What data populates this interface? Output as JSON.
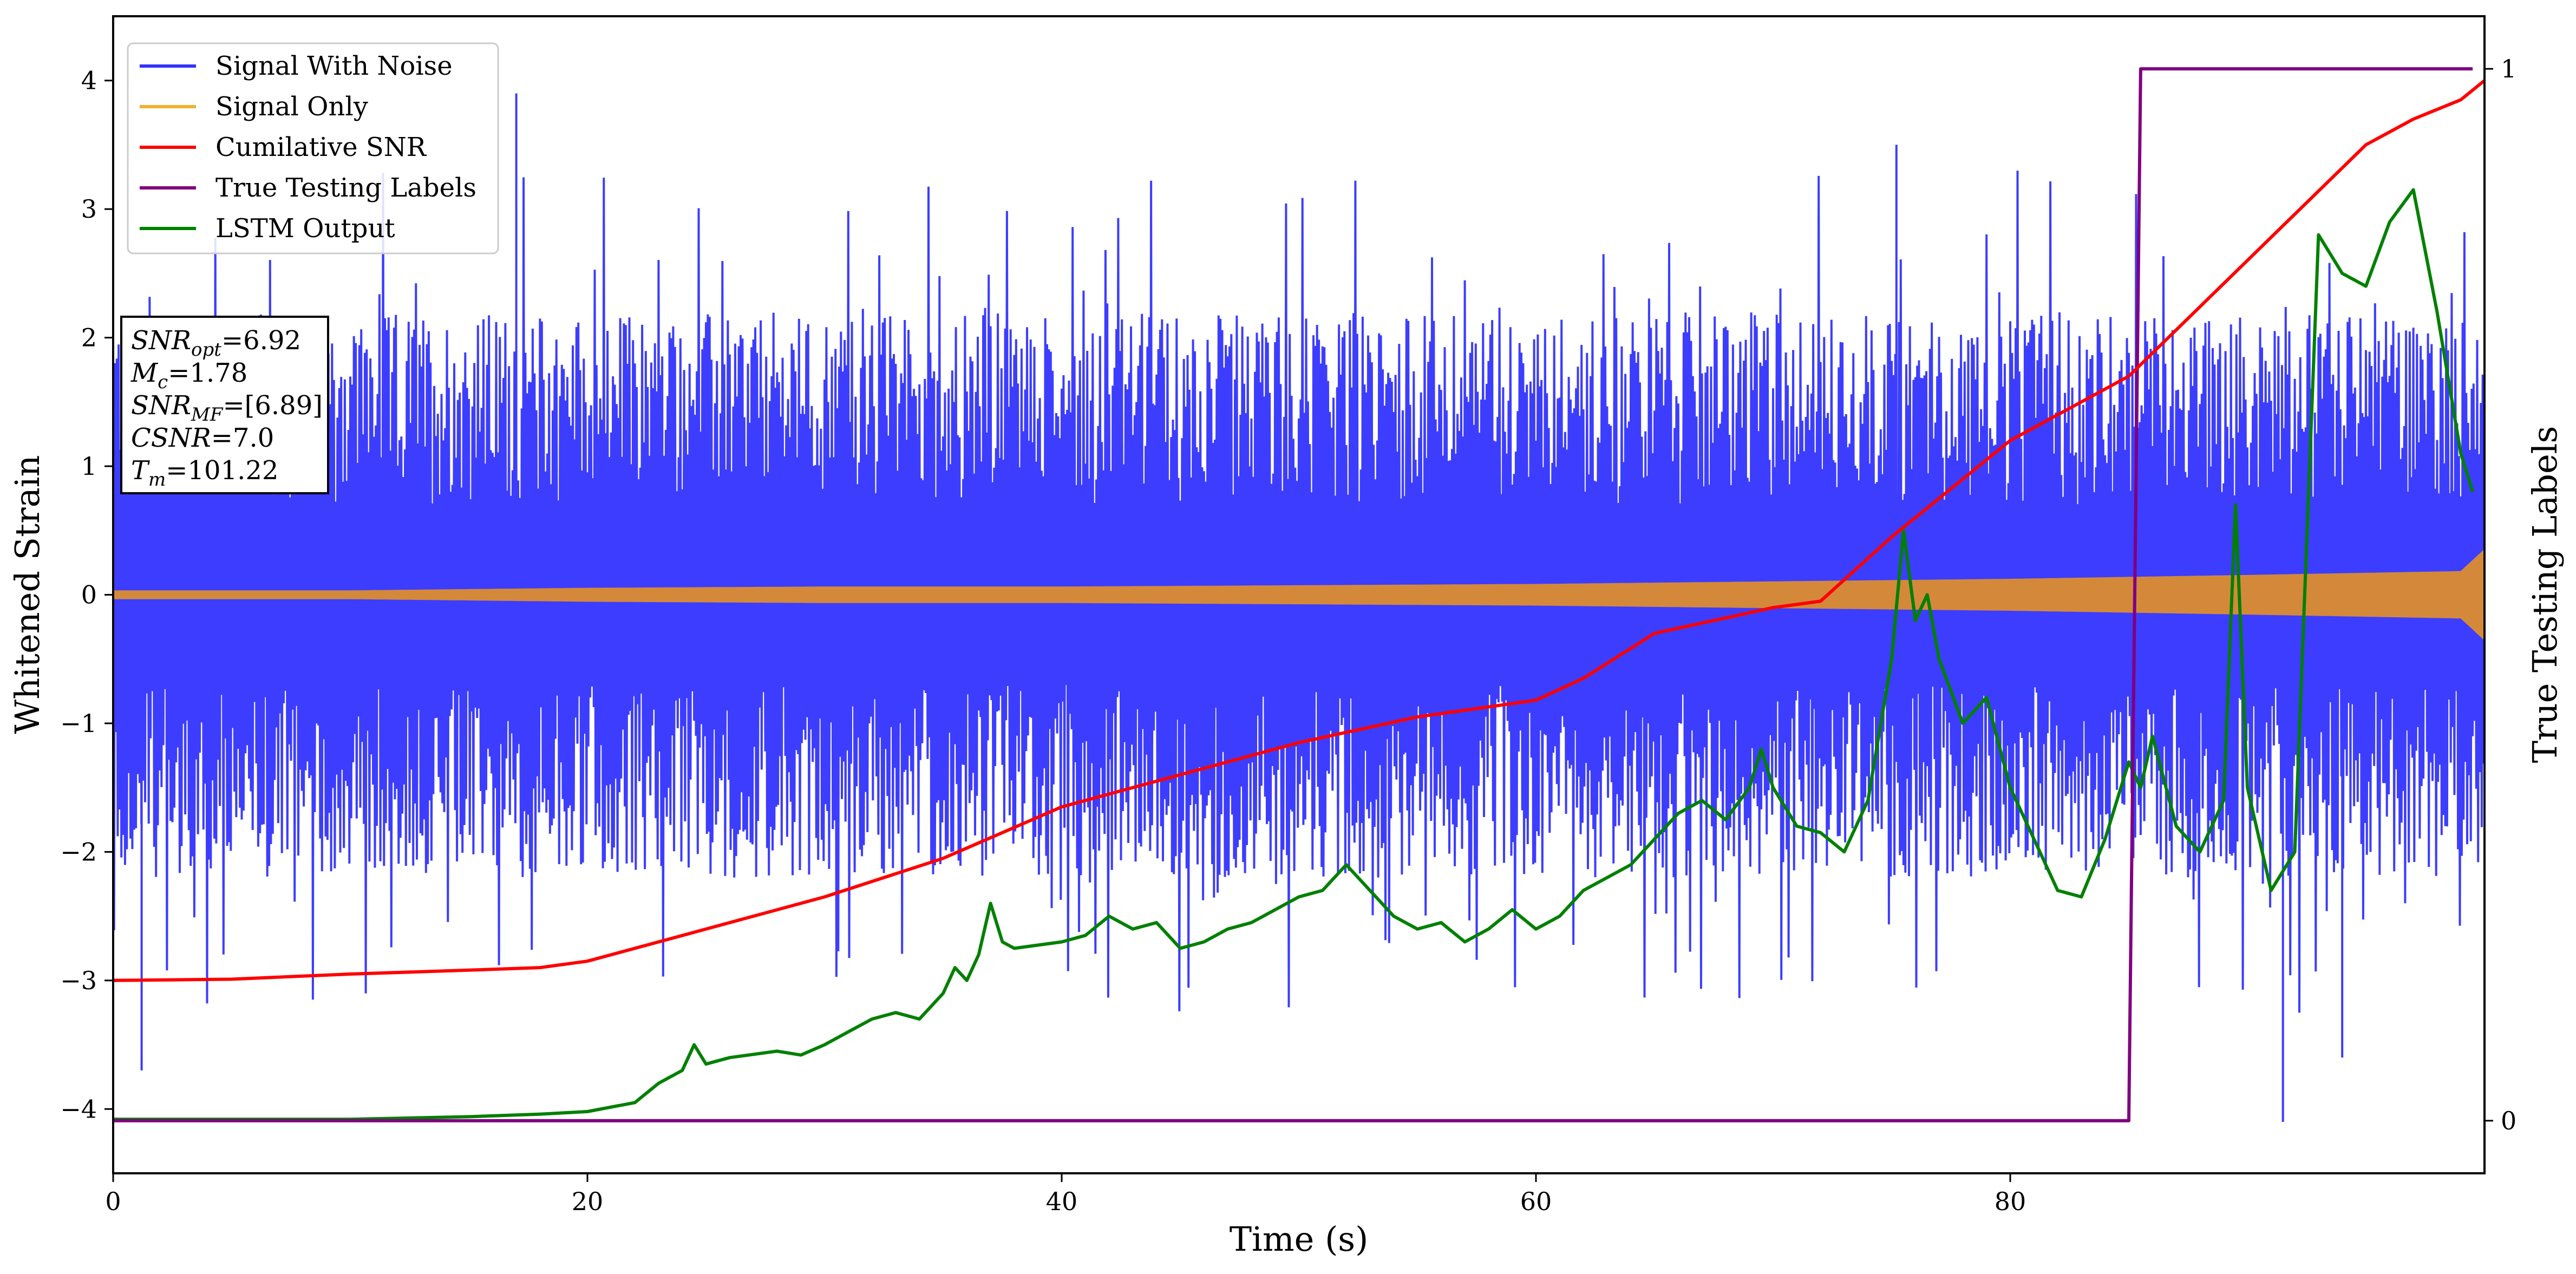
{
  "chart_data": {
    "type": "line",
    "xlabel": "Time (s)",
    "ylabel": "Whitened Strain",
    "y2label": "True Testing Labels",
    "xlim": [
      0,
      100
    ],
    "ylim": [
      -4.5,
      4.5
    ],
    "y2lim": [
      -0.05,
      1.05
    ],
    "xticks": [
      0,
      20,
      40,
      60,
      80
    ],
    "yticks": [
      -4,
      -3,
      -2,
      -1,
      0,
      1,
      2,
      3,
      4
    ],
    "y2ticks": [
      0,
      1
    ],
    "legend_position": "top-left",
    "colors": {
      "noise": "#3333ff",
      "signal": "#d4893a",
      "csnr": "#ff0000",
      "labels": "#800080",
      "lstm": "#008000"
    },
    "series": [
      {
        "key": "noise",
        "name": "Signal With Noise",
        "axis": "left",
        "legend_color": "#3333ff",
        "envelope": {
          "x": [
            0,
            10,
            20,
            30,
            40,
            50,
            60,
            70,
            80,
            90,
            100
          ],
          "upper_typ": [
            2.0,
            2.0,
            2.0,
            2.0,
            2.0,
            2.0,
            2.0,
            2.0,
            2.0,
            2.0,
            2.0
          ],
          "lower_typ": [
            -2.0,
            -2.0,
            -2.0,
            -2.0,
            -2.0,
            -2.0,
            -2.0,
            -2.0,
            -2.0,
            -2.0,
            -2.0
          ]
        },
        "notable_peaks": [
          [
            1.2,
            -3.7
          ],
          [
            17.0,
            3.9
          ],
          [
            75.2,
            3.5
          ],
          [
            91.5,
            -4.1
          ],
          [
            94.0,
            -3.6
          ]
        ]
      },
      {
        "key": "signal",
        "name": "Signal Only",
        "axis": "left",
        "legend_color": "#f0b030",
        "envelope": {
          "x": [
            0,
            10,
            20,
            30,
            40,
            50,
            60,
            70,
            80,
            90,
            99,
            100
          ],
          "amp": [
            0.03,
            0.03,
            0.05,
            0.06,
            0.06,
            0.07,
            0.08,
            0.1,
            0.12,
            0.15,
            0.18,
            0.35
          ]
        }
      },
      {
        "key": "csnr",
        "name": "Cumilative SNR",
        "axis": "left",
        "x": [
          0,
          5,
          10,
          15,
          18,
          20,
          22,
          25,
          30,
          35,
          40,
          45,
          50,
          55,
          60,
          62,
          65,
          70,
          72,
          75,
          80,
          85,
          90,
          95,
          97,
          99,
          100
        ],
        "y": [
          -3.0,
          -2.99,
          -2.95,
          -2.92,
          -2.9,
          -2.85,
          -2.75,
          -2.6,
          -2.35,
          -2.05,
          -1.65,
          -1.4,
          -1.15,
          -0.95,
          -0.82,
          -0.65,
          -0.3,
          -0.1,
          -0.05,
          0.45,
          1.2,
          1.7,
          2.6,
          3.5,
          3.7,
          3.85,
          4.0
        ]
      },
      {
        "key": "labels",
        "name": "True Testing Labels",
        "axis": "right",
        "x": [
          0,
          85.0,
          85.5,
          99.5
        ],
        "y": [
          0,
          0,
          1,
          1
        ]
      },
      {
        "key": "lstm",
        "name": "LSTM Output",
        "axis": "left",
        "x": [
          0,
          10,
          15,
          18,
          20,
          22,
          23,
          24,
          24.5,
          25,
          26,
          28,
          29,
          30,
          31,
          32,
          33,
          34,
          35,
          35.5,
          36,
          36.5,
          37,
          37.5,
          38,
          40,
          41,
          42,
          43,
          44,
          45,
          46,
          47,
          48,
          49,
          50,
          51,
          52,
          53,
          54,
          55,
          56,
          57,
          58,
          59,
          60,
          61,
          62,
          63,
          64,
          65,
          66,
          67,
          68,
          69,
          69.5,
          70,
          71,
          72,
          73,
          74,
          75,
          75.5,
          76,
          76.5,
          77,
          78,
          79,
          80,
          81,
          82,
          83,
          84,
          85,
          85.5,
          86,
          87,
          88,
          89,
          89.5,
          90,
          91,
          92,
          93,
          94,
          95,
          96,
          97,
          98,
          99,
          99.5
        ],
        "y": [
          -4.08,
          -4.08,
          -4.06,
          -4.04,
          -4.02,
          -3.95,
          -3.8,
          -3.7,
          -3.5,
          -3.65,
          -3.6,
          -3.55,
          -3.58,
          -3.5,
          -3.4,
          -3.3,
          -3.25,
          -3.3,
          -3.1,
          -2.9,
          -3.0,
          -2.8,
          -2.4,
          -2.7,
          -2.75,
          -2.7,
          -2.65,
          -2.5,
          -2.6,
          -2.55,
          -2.75,
          -2.7,
          -2.6,
          -2.55,
          -2.45,
          -2.35,
          -2.3,
          -2.1,
          -2.3,
          -2.5,
          -2.6,
          -2.55,
          -2.7,
          -2.6,
          -2.45,
          -2.6,
          -2.5,
          -2.3,
          -2.2,
          -2.1,
          -1.9,
          -1.7,
          -1.6,
          -1.75,
          -1.5,
          -1.2,
          -1.5,
          -1.8,
          -1.85,
          -2.0,
          -1.6,
          -0.5,
          0.5,
          -0.2,
          0.0,
          -0.5,
          -1.0,
          -0.8,
          -1.5,
          -1.9,
          -2.3,
          -2.35,
          -1.9,
          -1.3,
          -1.5,
          -1.1,
          -1.8,
          -2.0,
          -1.6,
          0.7,
          -1.5,
          -2.3,
          -2.0,
          2.8,
          2.5,
          2.4,
          2.9,
          3.15,
          2.2,
          1.1,
          0.8
        ]
      }
    ]
  },
  "info_box": {
    "snr_opt": {
      "base": "SNR",
      "sub": "opt",
      "value": "=6.92"
    },
    "mc": {
      "base": "M",
      "sub": "c",
      "value": "=1.78"
    },
    "snr_mf": {
      "base": "SNR",
      "sub": "MF",
      "value": "=[6.89]"
    },
    "csnr": {
      "base": "CSNR",
      "value": "=7.0"
    },
    "tm": {
      "base": "T",
      "sub": "m",
      "value": "=101.22"
    }
  }
}
